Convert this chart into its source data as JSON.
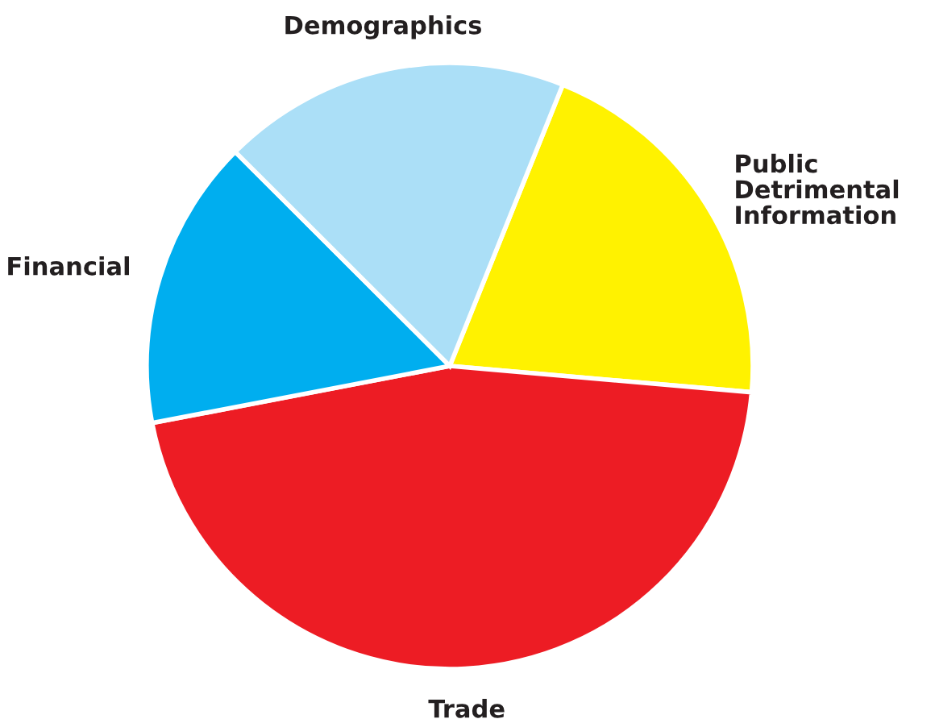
{
  "chart_data": {
    "type": "pie",
    "categories": [
      "Public Detrimental Information",
      "Trade",
      "Financial",
      "Demographics"
    ],
    "values": [
      20.3,
      45.6,
      15.5,
      18.6
    ],
    "colors": [
      "#fff200",
      "#ed1c24",
      "#00aeef",
      "#abdff7"
    ],
    "legend": false
  }
}
